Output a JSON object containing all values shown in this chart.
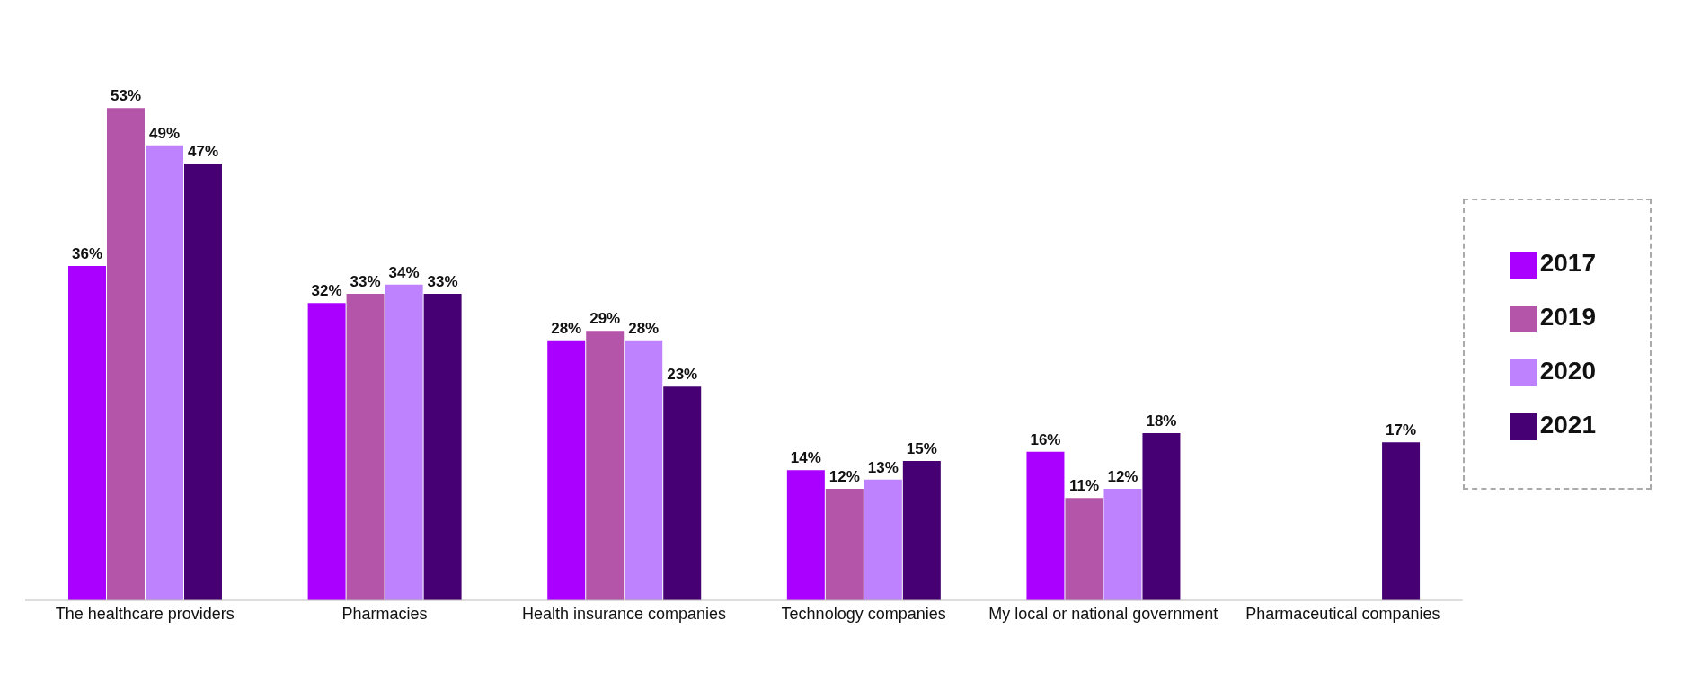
{
  "chart_data": {
    "type": "bar",
    "categories": [
      "The healthcare providers",
      "Pharmacies",
      "Health insurance companies",
      "Technology companies",
      "My local or national government",
      "Pharmaceutical companies"
    ],
    "series": [
      {
        "name": "2017",
        "color": "#aa00ff",
        "values": [
          36,
          32,
          28,
          14,
          16,
          null
        ],
        "value_labels": [
          "36%",
          "32%",
          "28%",
          "14%",
          "16%",
          null
        ]
      },
      {
        "name": "2019",
        "color": "#b455aa",
        "values": [
          53,
          33,
          29,
          12,
          11,
          null
        ],
        "value_labels": [
          "53%",
          "33%",
          "29%",
          "12%",
          "11%",
          null
        ]
      },
      {
        "name": "2020",
        "color": "#be82ff",
        "values": [
          49,
          34,
          28,
          13,
          12,
          null
        ],
        "value_labels": [
          "49%",
          "34%",
          "28%",
          "13%",
          "12%",
          null
        ]
      },
      {
        "name": "2021",
        "color": "#460073",
        "values": [
          47,
          33,
          23,
          15,
          18,
          17
        ],
        "value_labels": [
          "47%",
          "33%",
          "23%",
          "15%",
          "18%",
          "17%"
        ]
      }
    ],
    "legend": "right",
    "grid": false
  }
}
